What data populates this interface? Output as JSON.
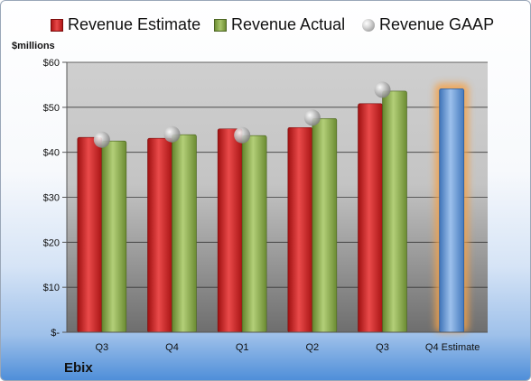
{
  "legend": {
    "estimate": "Revenue Estimate",
    "actual": "Revenue Actual",
    "gaap": "Revenue GAAP"
  },
  "units_label": "$millions",
  "company": "Ebix",
  "colors": {
    "estimate": "#c81e1e",
    "actual": "#8aaa4c",
    "forecast": "#5b8fd0",
    "highlight": "#f4a24a"
  },
  "chart_data": {
    "type": "bar",
    "categories": [
      "Q3",
      "Q4",
      "Q1",
      "Q2",
      "Q3",
      "Q4 Estimate"
    ],
    "series": [
      {
        "name": "Revenue Estimate",
        "values": [
          43.3,
          43.1,
          45.2,
          45.5,
          50.8,
          54.1
        ]
      },
      {
        "name": "Revenue Actual",
        "values": [
          42.5,
          43.9,
          43.7,
          47.5,
          53.6,
          null
        ]
      },
      {
        "name": "Revenue GAAP",
        "values": [
          42.8,
          44.0,
          43.8,
          47.7,
          53.9,
          null
        ]
      }
    ],
    "ylim": [
      0,
      60
    ],
    "yticks": [
      {
        "value": 0,
        "label": "$-"
      },
      {
        "value": 10,
        "label": "$10"
      },
      {
        "value": 20,
        "label": "$20"
      },
      {
        "value": 30,
        "label": "$30"
      },
      {
        "value": 40,
        "label": "$40"
      },
      {
        "value": 50,
        "label": "$50"
      },
      {
        "value": 60,
        "label": "$60"
      }
    ],
    "grid": true,
    "legend_position": "top"
  }
}
